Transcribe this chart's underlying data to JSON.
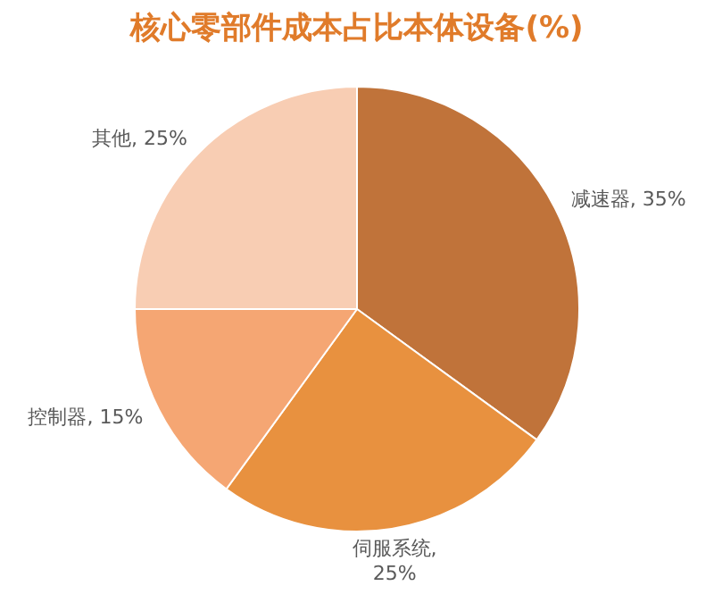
{
  "chart_data": {
    "type": "pie",
    "title": "核心零部件成本占比本体设备(%)",
    "categories": [
      "减速器",
      "伺服系统",
      "控制器",
      "其他"
    ],
    "values": [
      35,
      25,
      15,
      25
    ],
    "value_labels": [
      ", 35%",
      ",\n25%",
      ", 15%",
      ", 25%"
    ],
    "colors": [
      "#c0733a",
      "#e8913f",
      "#f5a673",
      "#f8cdb3"
    ]
  }
}
